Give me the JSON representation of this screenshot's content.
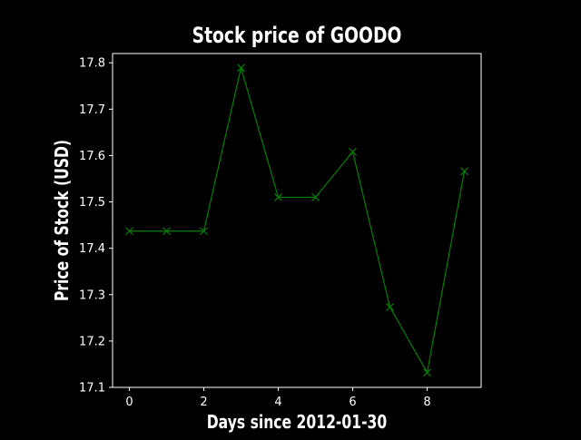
{
  "chart_data": {
    "type": "line",
    "title": "Stock price of GOODO",
    "xlabel": "Days since 2012-01-30",
    "ylabel": "Price of Stock (USD)",
    "x": [
      0,
      1,
      2,
      3,
      4,
      5,
      6,
      7,
      8,
      9
    ],
    "series": [
      {
        "values": [
          17.437,
          17.437,
          17.437,
          17.789,
          17.51,
          17.51,
          17.608,
          17.273,
          17.132,
          17.566
        ],
        "color": "#008000",
        "marker": "x"
      }
    ],
    "xlim": [
      -0.45,
      9.45
    ],
    "ylim": [
      17.1,
      17.82
    ],
    "xticks": [
      0,
      2,
      4,
      6,
      8
    ],
    "yticks": [
      17.1,
      17.2,
      17.3,
      17.4,
      17.5,
      17.6,
      17.7,
      17.8
    ],
    "grid": false,
    "background": "#000000",
    "foreground": "#ffffff"
  }
}
